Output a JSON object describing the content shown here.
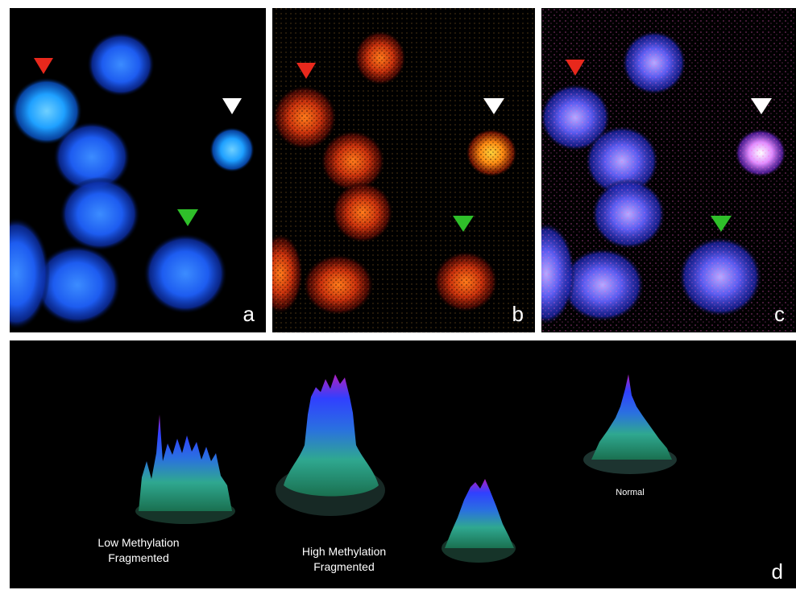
{
  "panels": {
    "a": {
      "letter": "a"
    },
    "b": {
      "letter": "b"
    },
    "c": {
      "letter": "c"
    },
    "d": {
      "letter": "d",
      "profiles": [
        {
          "line1": "Low Methylation",
          "line2": "Fragmented"
        },
        {
          "line1": "High Methylation",
          "line2": "Fragmented"
        },
        {
          "line1": "Normal",
          "line2": ""
        }
      ]
    }
  },
  "arrow_colors": {
    "red": "#e8281c",
    "white": "#ffffff",
    "green": "#2fbf2a"
  },
  "stain_colors": {
    "dapi": "#1f6bff",
    "methylation": "#ff5a10",
    "merged": "#c070ff"
  }
}
